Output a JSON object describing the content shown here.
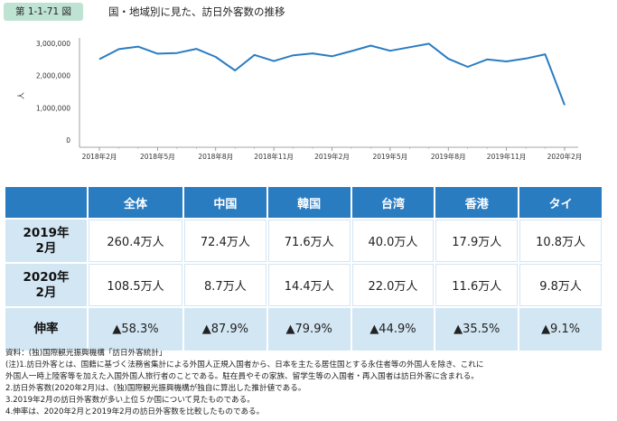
{
  "header": {
    "figure_label": "第 1-1-71 図",
    "title": "国・地域別に見た、訪日外客数の推移"
  },
  "chart_data": {
    "type": "line",
    "ylabel": "人",
    "yticks": [
      "3,000,000",
      "2,000,000",
      "1,000,000",
      "0"
    ],
    "ylim": [
      0,
      3000000
    ],
    "x_tick_labels": [
      "2018年2月",
      "2018年5月",
      "2018年8月",
      "2018年11月",
      "2019年2月",
      "2019年5月",
      "2019年8月",
      "2019年11月",
      "2020年2月"
    ],
    "x": [
      "2018年2月",
      "2018年3月",
      "2018年4月",
      "2018年5月",
      "2018年6月",
      "2018年7月",
      "2018年8月",
      "2018年9月",
      "2018年10月",
      "2018年11月",
      "2018年12月",
      "2019年1月",
      "2019年2月",
      "2019年3月",
      "2019年4月",
      "2019年5月",
      "2019年6月",
      "2019年7月",
      "2019年8月",
      "2019年9月",
      "2019年10月",
      "2019年11月",
      "2019年12月",
      "2020年1月",
      "2020年2月"
    ],
    "series": [
      {
        "values": [
          2510000,
          2820000,
          2900000,
          2680000,
          2700000,
          2830000,
          2580000,
          2160000,
          2640000,
          2450000,
          2630000,
          2690000,
          2600000,
          2760000,
          2930000,
          2770000,
          2880000,
          2990000,
          2520000,
          2270000,
          2500000,
          2440000,
          2530000,
          2660000,
          1085000
        ],
        "color": "#2a7cc1"
      }
    ],
    "grid": false
  },
  "table": {
    "columns": [
      "全体",
      "中国",
      "韓国",
      "台湾",
      "香港",
      "タイ"
    ],
    "rows": [
      {
        "label_line1": "2019年",
        "label_line2": "2月",
        "values": [
          "260.4万人",
          "72.4万人",
          "71.6万人",
          "40.0万人",
          "17.9万人",
          "10.8万人"
        ]
      },
      {
        "label_line1": "2020年",
        "label_line2": "2月",
        "values": [
          "108.5万人",
          "8.7万人",
          "14.4万人",
          "22.0万人",
          "11.6万人",
          "9.8万人"
        ]
      },
      {
        "label_line1": "伸率",
        "label_line2": "",
        "values": [
          "▲58.3%",
          "▲87.9%",
          "▲79.9%",
          "▲44.9%",
          "▲35.5%",
          "▲9.1%"
        ]
      }
    ]
  },
  "notes": [
    "資料：(独)国際観光振興機構「訪日外客統計」",
    "(注)1.訪日外客とは、国籍に基づく法務省集計による外国人正規入国者から、日本を主たる居住国とする永住者等の外国人を除き、これに",
    "外国人一時上陸客等を加えた入国外国人旅行者のことである。駐在員やその家族、留学生等の入国者・再入国者は訪日外客に含まれる。",
    "2.訪日外客数(2020年2月)は、(独)国際観光振興機構が独自に算出した推計値である。",
    "3.2019年2月の訪日外客数が多い上位５か国について見たものである。",
    "4.伸率は、2020年2月と2019年2月の訪日外客数を比較したものである。"
  ]
}
